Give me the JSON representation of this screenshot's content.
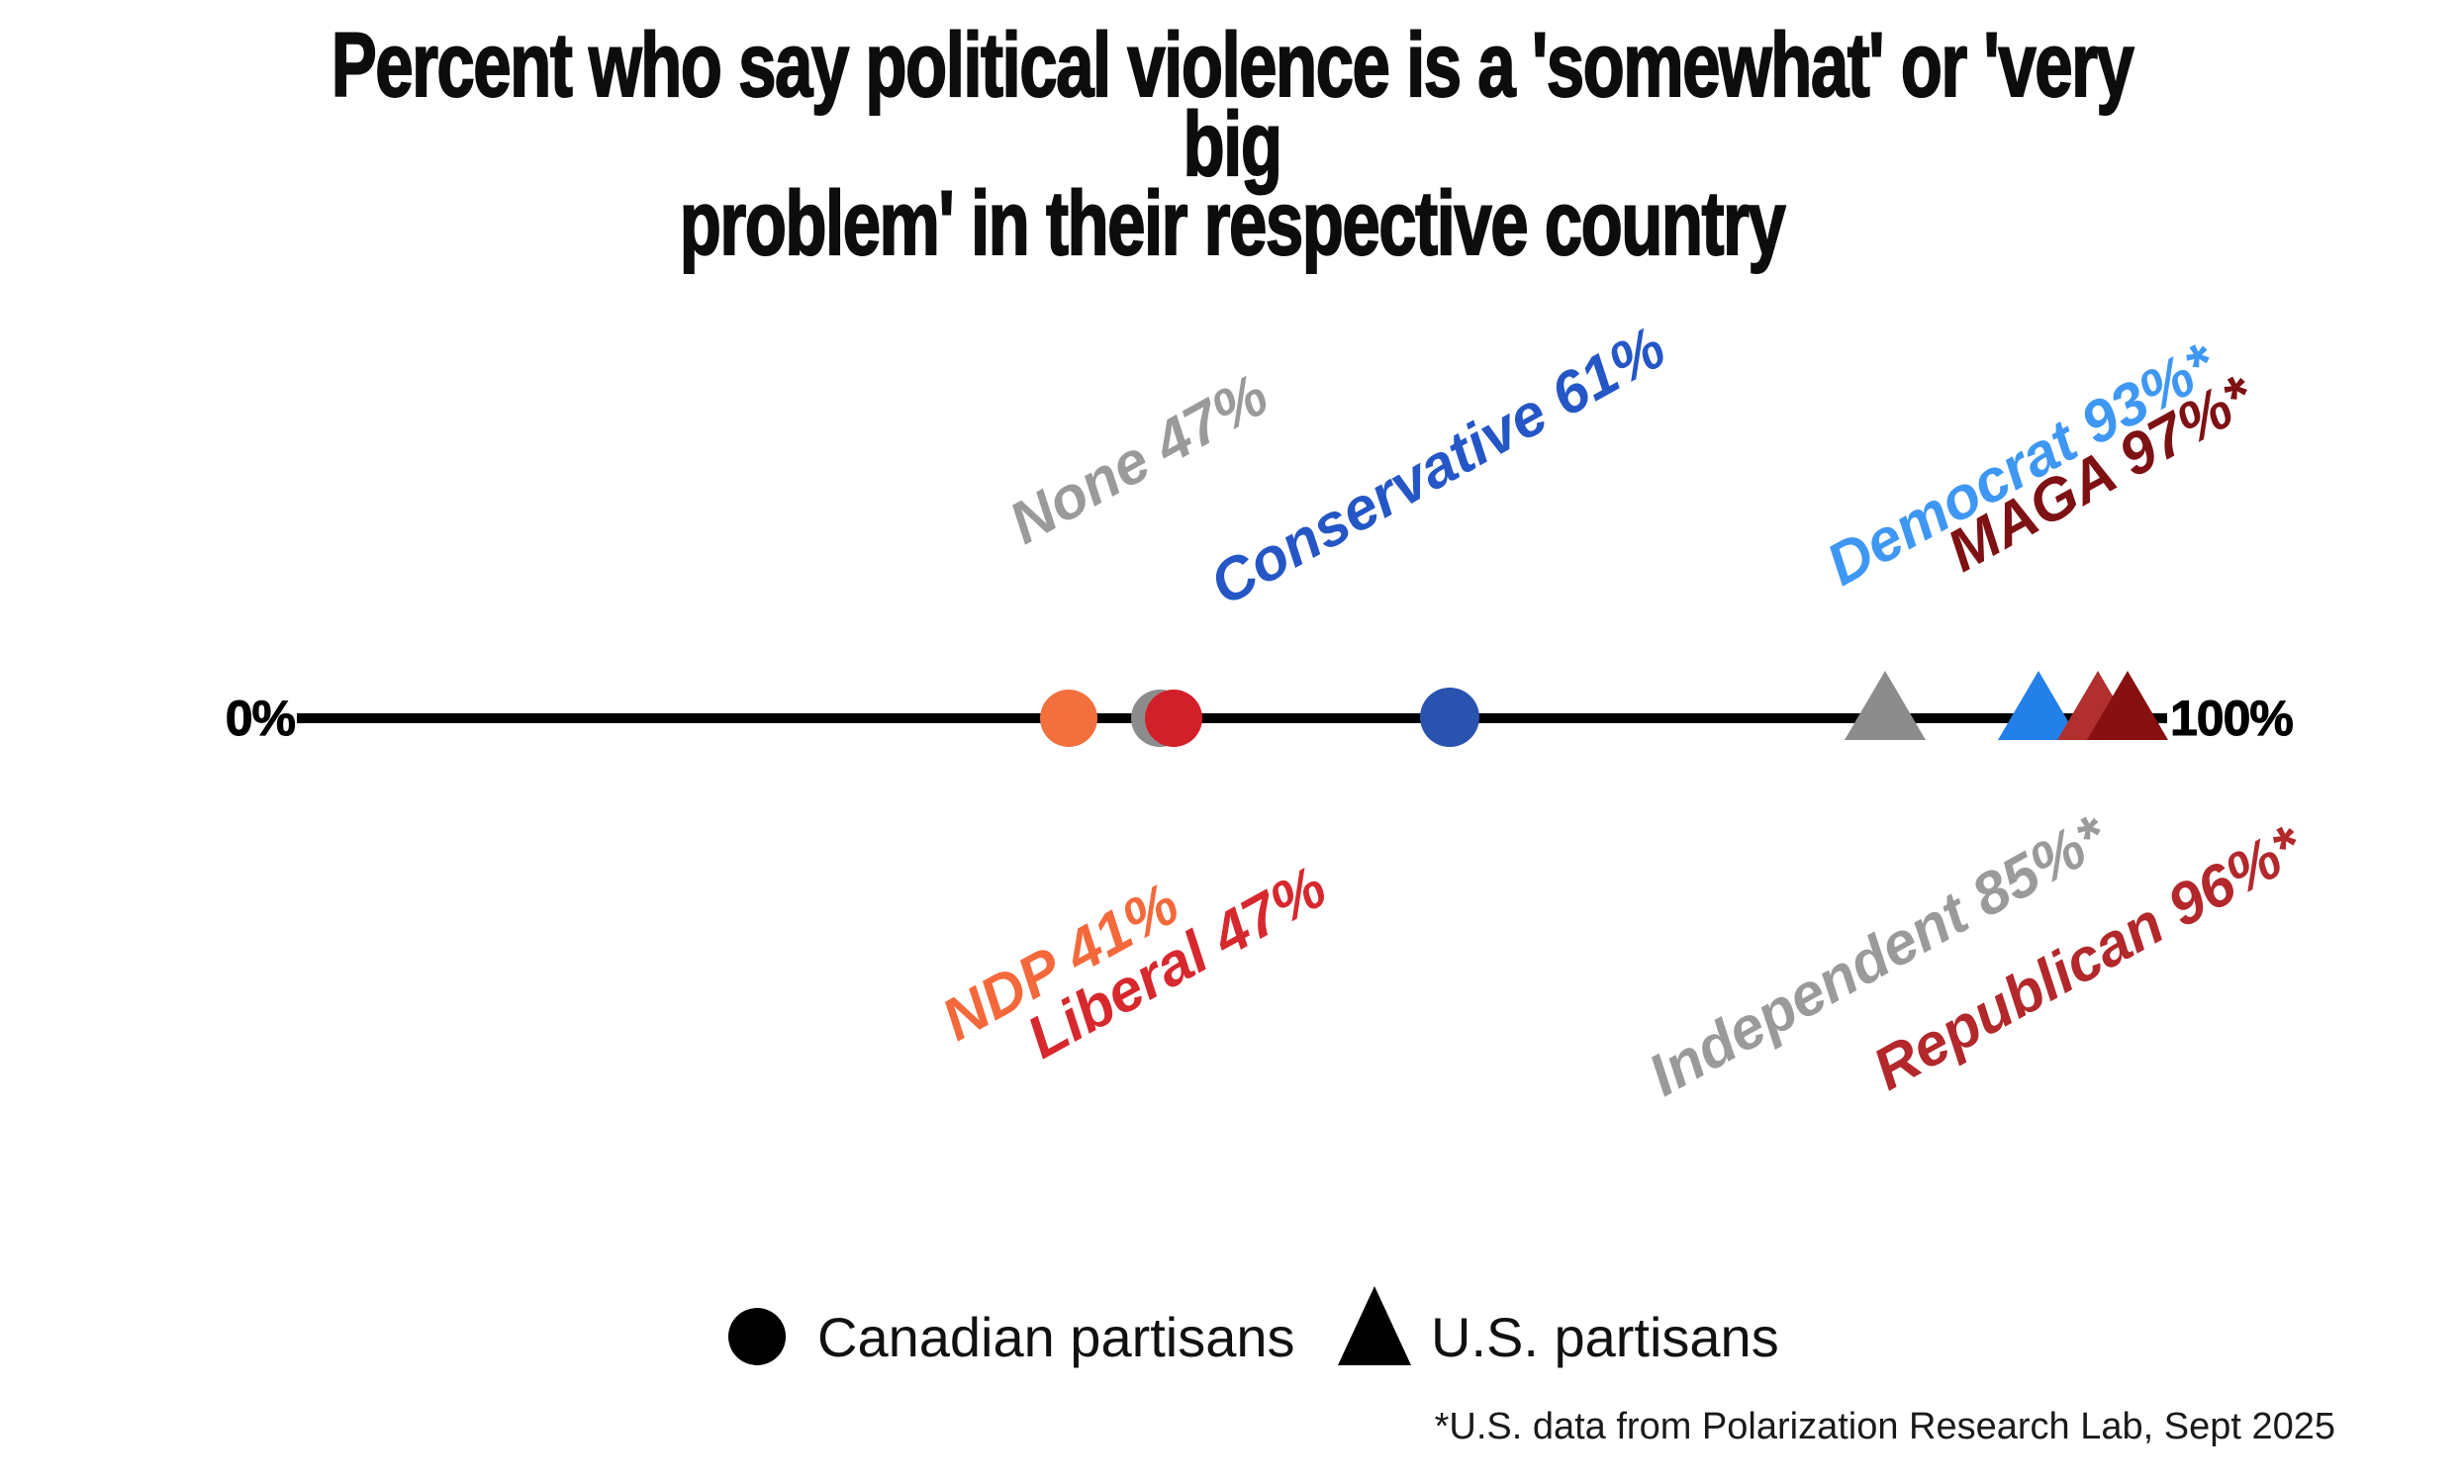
{
  "title": {
    "line1": "Percent who say political violence is a 'somewhat' or 'very big",
    "line2": "problem' in their respective country"
  },
  "chart_data": {
    "type": "scatter",
    "subtype": "dot-strip-plot",
    "title": "Percent who say political violence is a 'somewhat' or 'very big problem' in their respective country",
    "xlabel": "",
    "ylabel": "",
    "xlim": [
      0,
      100
    ],
    "x_tick_labels": [
      "0%",
      "100%"
    ],
    "grid": false,
    "legend_position": "bottom",
    "legend": [
      {
        "marker": "circle",
        "label": "Canadian partisans",
        "color": "#000000"
      },
      {
        "marker": "triangle",
        "label": "U.S. partisans",
        "color": "#000000"
      }
    ],
    "series": [
      {
        "name": "Canadian partisans",
        "marker": "circle",
        "points": [
          {
            "party": "NDP",
            "percent": 41,
            "label": "NDP 41%",
            "marker_color": "#f2703d",
            "label_color": "#f4693b"
          },
          {
            "party": "None",
            "percent": 47,
            "label": "None 47%",
            "marker_color": "#8c8c8c",
            "label_color": "#9a9a9a"
          },
          {
            "party": "Liberal",
            "percent": 47,
            "label": "Liberal 47%",
            "marker_color": "#d2202a",
            "label_color": "#d7282e"
          },
          {
            "party": "Conservative",
            "percent": 61,
            "label": "Conservative 61%",
            "marker_color": "#2a53b0",
            "label_color": "#2456c6"
          }
        ]
      },
      {
        "name": "U.S. partisans",
        "marker": "triangle",
        "points": [
          {
            "party": "Independent",
            "percent": 85,
            "label": "Independent 85%*",
            "marker_color": "#8c8c8c",
            "label_color": "#9a9a9a"
          },
          {
            "party": "Democrat",
            "percent": 93,
            "label": "Democrat 93%*",
            "marker_color": "#2380e8",
            "label_color": "#3e97f2"
          },
          {
            "party": "Republican",
            "percent": 96,
            "label": "Republican 96%*",
            "marker_color": "#b1302f",
            "label_color": "#b2282b"
          },
          {
            "party": "MAGA",
            "percent": 97,
            "label": "MAGA 97%*",
            "marker_color": "#871110",
            "label_color": "#7e1113"
          }
        ]
      }
    ],
    "footnote": "*U.S. data from Polarization Research Lab, Sept 2025"
  }
}
